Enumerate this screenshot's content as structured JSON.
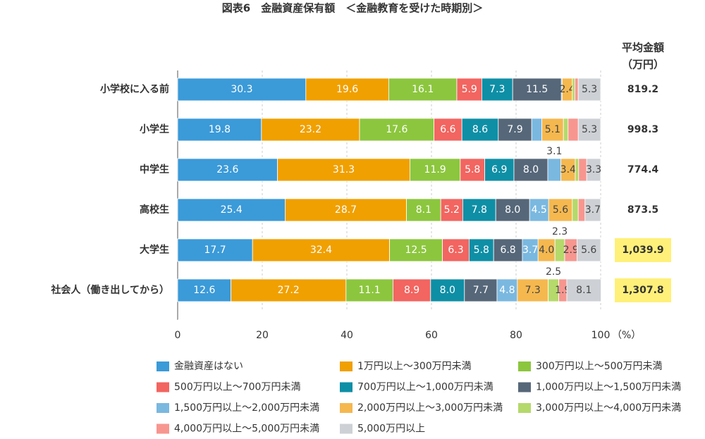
{
  "chart_data": {
    "type": "stacked-bar-horizontal",
    "title": "図表6　金融資産保有額　＜金融教育を受けた時期別＞",
    "categories": [
      "小学校に入る前",
      "小学生",
      "中学生",
      "高校生",
      "大学生",
      "社会人（働き出してから）"
    ],
    "xlim": [
      0,
      100
    ],
    "xticks": [
      0,
      20,
      40,
      60,
      80,
      100
    ],
    "x_unit": "（%）",
    "grid": true,
    "series": [
      {
        "name": "金融資産はない",
        "color": "#3b9ad8",
        "values": [
          30.3,
          19.8,
          23.6,
          25.4,
          17.7,
          12.6
        ],
        "value_labels": [
          "30.3",
          "19.8",
          "23.6",
          "25.4",
          "17.7",
          "12.6"
        ]
      },
      {
        "name": "1万円以上～300万円未満",
        "color": "#f0a000",
        "values": [
          19.6,
          23.2,
          31.3,
          28.7,
          32.4,
          27.2
        ],
        "value_labels": [
          "19.6",
          "23.2",
          "31.3",
          "28.7",
          "32.4",
          "27.2"
        ]
      },
      {
        "name": "300万円以上～500万円未満",
        "color": "#8cc63e",
        "values": [
          16.1,
          17.6,
          11.9,
          8.1,
          12.5,
          11.1
        ],
        "value_labels": [
          "16.1",
          "17.6",
          "11.9",
          "8.1",
          "12.5",
          "11.1"
        ]
      },
      {
        "name": "500万円以上～700万円未満",
        "color": "#f26560",
        "values": [
          5.9,
          6.6,
          5.8,
          5.2,
          6.3,
          8.9
        ],
        "value_labels": [
          "5.9",
          "6.6",
          "5.8",
          "5.2",
          "6.3",
          "8.9"
        ]
      },
      {
        "name": "700万円以上～1,000万円未満",
        "color": "#0e8fa6",
        "values": [
          7.3,
          8.6,
          6.9,
          7.8,
          5.8,
          8.0
        ],
        "value_labels": [
          "7.3",
          "8.6",
          "6.9",
          "7.8",
          "5.8",
          "8.0"
        ]
      },
      {
        "name": "1,000万円以上～1,500万円未満",
        "color": "#566779",
        "values": [
          11.5,
          7.9,
          8.0,
          8.0,
          6.8,
          7.7
        ],
        "value_labels": [
          "11.5",
          "7.9",
          "8.0",
          "8.0",
          "6.8",
          "7.7"
        ]
      },
      {
        "name": "1,500万円以上～2,000万円未満",
        "color": "#7ab8e0",
        "values": [
          0.2,
          2.4,
          3.1,
          4.5,
          3.7,
          4.8
        ],
        "value_labels": [
          null,
          null,
          "3.1",
          "4.5",
          "3.7",
          "4.8"
        ]
      },
      {
        "name": "2,000万円以上～3,000万円未満",
        "color": "#f5b84f",
        "values": [
          2.4,
          5.1,
          3.4,
          5.6,
          4.0,
          7.3
        ],
        "value_labels": [
          "2.4",
          "5.1",
          "3.4",
          "5.6",
          "4.0",
          "7.3"
        ]
      },
      {
        "name": "3,000万円以上～4,000万円未満",
        "color": "#b5d96b",
        "values": [
          0.6,
          1.1,
          0.8,
          1.4,
          2.3,
          2.5
        ],
        "value_labels": [
          null,
          null,
          null,
          null,
          "2.3",
          "2.5"
        ]
      },
      {
        "name": "4,000万円以上～5,000万円未満",
        "color": "#f7968f",
        "values": [
          0.8,
          2.4,
          1.9,
          1.6,
          2.9,
          1.9
        ],
        "value_labels": [
          null,
          null,
          null,
          null,
          "2.9",
          "1.9"
        ]
      },
      {
        "name": "5,000万円以上",
        "color": "#cdd1d6",
        "values": [
          5.3,
          5.3,
          3.3,
          3.7,
          5.6,
          8.1
        ],
        "value_labels": [
          "5.3",
          "5.3",
          "3.3",
          "3.7",
          "5.6",
          "8.1"
        ]
      }
    ],
    "average": {
      "title": "平均金額",
      "unit": "（万円）",
      "values": [
        819.2,
        998.3,
        774.4,
        873.5,
        1039.9,
        1307.8
      ],
      "value_labels": [
        "819.2",
        "998.3",
        "774.4",
        "873.5",
        "1,039.9",
        "1,307.8"
      ],
      "highlight": [
        false,
        false,
        false,
        false,
        true,
        true
      ],
      "highlight_color": "#fff07a"
    }
  }
}
